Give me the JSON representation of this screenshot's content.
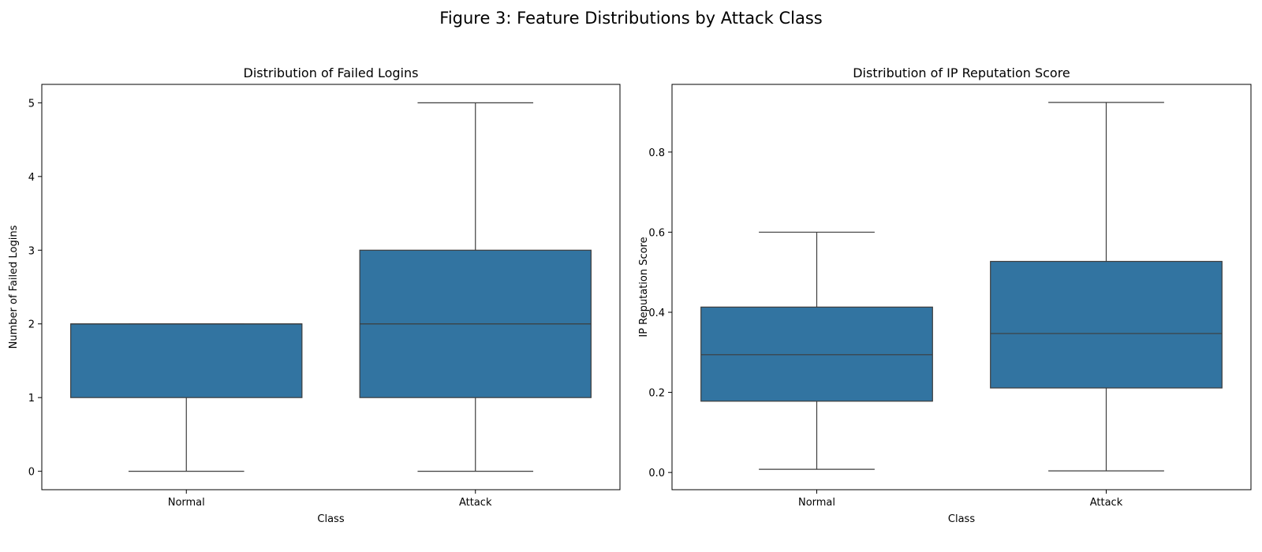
{
  "figure": {
    "suptitle": "Figure 3: Feature Distributions by Attack Class"
  },
  "chart_data": [
    {
      "type": "box",
      "title": "Distribution of Failed Logins",
      "xlabel": "Class",
      "ylabel": "Number of Failed Logins",
      "categories": [
        "Normal",
        "Attack"
      ],
      "ylim": [
        -0.25,
        5.25
      ],
      "yticks": [
        0,
        1,
        2,
        3,
        4,
        5
      ],
      "ytick_labels": [
        "0",
        "1",
        "2",
        "3",
        "4",
        "5"
      ],
      "color": "#3274a1",
      "boxes": [
        {
          "category": "Normal",
          "whisker_low": 0,
          "q1": 1,
          "median": 2,
          "q3": 2,
          "whisker_high": 2
        },
        {
          "category": "Attack",
          "whisker_low": 0,
          "q1": 1,
          "median": 2,
          "q3": 3,
          "whisker_high": 5
        }
      ],
      "grid": false
    },
    {
      "type": "box",
      "title": "Distribution of IP Reputation Score",
      "xlabel": "Class",
      "ylabel": "IP Reputation Score",
      "categories": [
        "Normal",
        "Attack"
      ],
      "ylim": [
        -0.043,
        0.969
      ],
      "yticks": [
        0.0,
        0.2,
        0.4,
        0.6,
        0.8
      ],
      "ytick_labels": [
        "0.0",
        "0.2",
        "0.4",
        "0.6",
        "0.8"
      ],
      "color": "#3274a1",
      "boxes": [
        {
          "category": "Normal",
          "whisker_low": 0.008,
          "q1": 0.178,
          "median": 0.294,
          "q3": 0.413,
          "whisker_high": 0.6
        },
        {
          "category": "Attack",
          "whisker_low": 0.004,
          "q1": 0.211,
          "median": 0.347,
          "q3": 0.527,
          "whisker_high": 0.924
        }
      ],
      "grid": false
    }
  ]
}
